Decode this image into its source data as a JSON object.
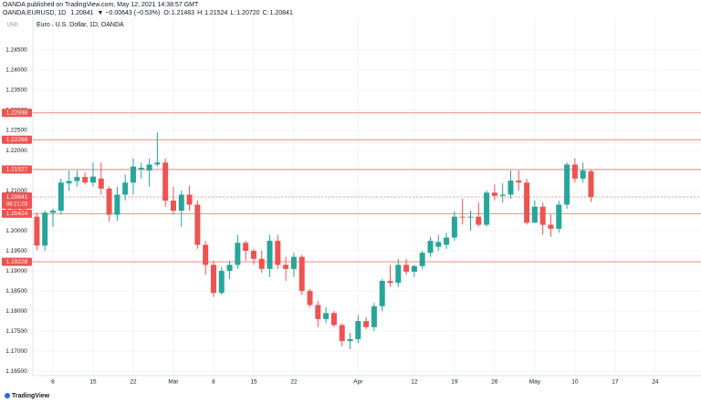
{
  "header": {
    "publisher": "OANDA published on TradingView.com, May 12, 2021 14:38:57 GMT",
    "symbol": "OANDA:EURUSD, 1D",
    "price": "1.20841",
    "change": "▼ −0.00643 (−0.53%)",
    "ohlc": [
      {
        "label": "O:",
        "value": "1.21483"
      },
      {
        "label": "H:",
        "value": "1.21524"
      },
      {
        "label": "L:",
        "value": "1.20720"
      },
      {
        "label": "C:",
        "value": "1.20841"
      }
    ]
  },
  "footer": {
    "brand": "TradingView"
  },
  "chart_data": {
    "type": "candlestick",
    "title": "Euro / U.S. Dollar, 1D, OANDA",
    "currency": "USD",
    "up_color": "#26a69a",
    "down_color": "#ef5350",
    "grid": true,
    "open": [
      1.2035,
      1.1963,
      1.2045,
      1.205,
      1.2118,
      1.2124,
      1.2134,
      1.212,
      1.213,
      1.2105,
      1.204,
      1.209,
      1.212,
      1.2153,
      1.215,
      1.2165,
      1.217,
      1.2075,
      1.205,
      1.209,
      1.2065,
      1.1965,
      1.1915,
      1.1845,
      1.19,
      1.1915,
      1.197,
      1.195,
      1.193,
      1.1905,
      1.1975,
      1.1915,
      1.1905,
      1.1935,
      1.185,
      1.1815,
      1.178,
      1.1795,
      1.1765,
      1.1725,
      1.173,
      1.1775,
      1.176,
      1.1812,
      1.1875,
      1.187,
      1.1915,
      1.1898,
      1.1912,
      1.1945,
      1.196,
      1.1965,
      1.1983,
      1.2035,
      1.2033,
      1.2035,
      1.2015,
      1.2095,
      1.2087,
      1.209,
      1.2125,
      1.212,
      1.202,
      1.206,
      1.2015,
      1.2005,
      1.2065,
      1.2165,
      1.213,
      1.21483
    ],
    "high": [
      1.2045,
      1.205,
      1.2055,
      1.213,
      1.215,
      1.215,
      1.2145,
      1.217,
      1.217,
      1.211,
      1.211,
      1.214,
      1.218,
      1.217,
      1.218,
      1.2245,
      1.218,
      1.211,
      1.21,
      1.2112,
      1.2075,
      1.1975,
      1.1925,
      1.191,
      1.1925,
      1.199,
      1.1975,
      1.1955,
      1.195,
      1.199,
      1.199,
      1.1935,
      1.1945,
      1.194,
      1.1855,
      1.1825,
      1.181,
      1.18,
      1.177,
      1.1745,
      1.179,
      1.1785,
      1.182,
      1.188,
      1.1915,
      1.193,
      1.193,
      1.1915,
      1.195,
      1.1985,
      1.199,
      1.1995,
      1.2048,
      1.208,
      1.205,
      1.207,
      1.21,
      1.2115,
      1.2118,
      1.215,
      1.215,
      1.213,
      1.2075,
      1.207,
      1.204,
      1.2075,
      1.217,
      1.218,
      1.217,
      1.21524
    ],
    "low": [
      1.1952,
      1.195,
      1.201,
      1.204,
      1.21,
      1.211,
      1.2115,
      1.211,
      1.209,
      1.2023,
      1.2025,
      1.2075,
      1.209,
      1.213,
      1.211,
      1.216,
      1.206,
      1.204,
      1.201,
      1.205,
      1.1955,
      1.189,
      1.1835,
      1.184,
      1.188,
      1.1905,
      1.1925,
      1.1915,
      1.1895,
      1.1885,
      1.1905,
      1.1875,
      1.1885,
      1.184,
      1.181,
      1.176,
      1.177,
      1.176,
      1.1712,
      1.1705,
      1.172,
      1.1755,
      1.175,
      1.18,
      1.186,
      1.186,
      1.189,
      1.1885,
      1.1905,
      1.1935,
      1.195,
      1.1955,
      1.1975,
      1.2015,
      1.2,
      1.201,
      1.201,
      1.2075,
      1.207,
      1.208,
      1.21,
      1.2015,
      1.202,
      1.199,
      1.1985,
      1.1995,
      1.2055,
      1.212,
      1.212,
      1.2072
    ],
    "close": [
      1.1963,
      1.2045,
      1.205,
      1.212,
      1.2124,
      1.2134,
      1.212,
      1.2135,
      1.2105,
      1.204,
      1.209,
      1.212,
      1.216,
      1.2157,
      1.2165,
      1.217,
      1.2075,
      1.205,
      1.209,
      1.2065,
      1.1965,
      1.1915,
      1.1845,
      1.19,
      1.1915,
      1.197,
      1.195,
      1.193,
      1.1905,
      1.1975,
      1.1915,
      1.1905,
      1.1935,
      1.185,
      1.1815,
      1.178,
      1.1795,
      1.1765,
      1.1725,
      1.173,
      1.1775,
      1.176,
      1.1812,
      1.1875,
      1.187,
      1.1915,
      1.1898,
      1.1912,
      1.1945,
      1.1975,
      1.1972,
      1.1983,
      1.2035,
      1.2033,
      1.2035,
      1.2015,
      1.2095,
      1.2087,
      1.209,
      1.2125,
      1.212,
      1.202,
      1.206,
      1.2015,
      1.2005,
      1.2065,
      1.2165,
      1.213,
      1.215,
      1.20841
    ],
    "xlim": [
      -0.5,
      82.7
    ],
    "xticks": [
      {
        "value": 2,
        "label": "8"
      },
      {
        "value": 7,
        "label": "15"
      },
      {
        "value": 12,
        "label": "22"
      },
      {
        "value": 17,
        "label": "Mar"
      },
      {
        "value": 22,
        "label": "8"
      },
      {
        "value": 27,
        "label": "15"
      },
      {
        "value": 32,
        "label": "22"
      },
      {
        "value": 40,
        "label": "Apr"
      },
      {
        "value": 47,
        "label": "12"
      },
      {
        "value": 52,
        "label": "19"
      },
      {
        "value": 57,
        "label": "26"
      },
      {
        "value": 62,
        "label": "May"
      },
      {
        "value": 67,
        "label": "10"
      },
      {
        "value": 72,
        "label": "17"
      },
      {
        "value": 77,
        "label": "24"
      }
    ],
    "ylim": [
      1.1639,
      1.2534
    ],
    "yticks": [
      {
        "value": 1.165,
        "label": "1.16500"
      },
      {
        "value": 1.17,
        "label": "1.17000"
      },
      {
        "value": 1.175,
        "label": "1.17500"
      },
      {
        "value": 1.18,
        "label": "1.18000"
      },
      {
        "value": 1.185,
        "label": "1.18500"
      },
      {
        "value": 1.19,
        "label": "1.19000"
      },
      {
        "value": 1.195,
        "label": "1.19500"
      },
      {
        "value": 1.2,
        "label": "1.20000"
      },
      {
        "value": 1.205,
        "label": "1.20500"
      },
      {
        "value": 1.21,
        "label": "1.21000"
      },
      {
        "value": 1.215,
        "label": "1.21500"
      },
      {
        "value": 1.22,
        "label": "1.22000"
      },
      {
        "value": 1.225,
        "label": "1.22500"
      },
      {
        "value": 1.23,
        "label": "1.23000"
      },
      {
        "value": 1.235,
        "label": "1.23500"
      },
      {
        "value": 1.24,
        "label": "1.24000"
      },
      {
        "value": 1.245,
        "label": "1.24500"
      }
    ],
    "levels": [
      1.22938,
      1.22268,
      1.21527,
      1.20424,
      1.19228
    ],
    "level_color": "#ef5350",
    "last_price": 1.20841,
    "countdown": "06:21:03"
  }
}
